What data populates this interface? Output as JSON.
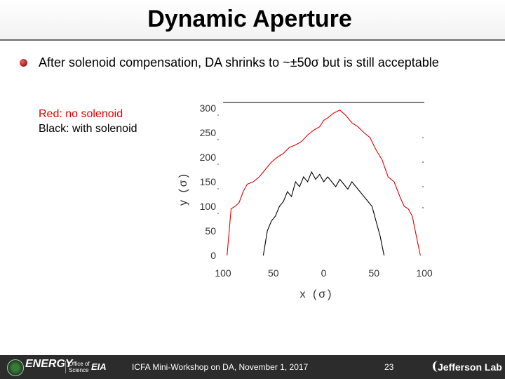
{
  "slide": {
    "title": "Dynamic Aperture",
    "bullet": "After solenoid compensation, DA shrinks to ~±50σ but is still acceptable",
    "legend_red": "Red: no solenoid",
    "legend_black": "Black: with solenoid"
  },
  "footer": {
    "workshop": "ICFA Mini-Workshop on DA, November 1, 2017",
    "page": "23",
    "doe_small": "U.S. DEPARTMENT OF",
    "doe": "ENERGY",
    "office_line1": "Office of",
    "office_line2": "Science",
    "fnal": "EIA",
    "jlab": "Jefferson Lab"
  },
  "colors": {
    "no_solenoid": "#e00000",
    "with_solenoid": "#000000",
    "footer_bg": "#2c2c2c"
  },
  "chart_data": {
    "type": "line",
    "xlabel": "x (σ)",
    "ylabel": "y (σ)",
    "x_ticks": [
      "100",
      "50",
      "0",
      "50",
      "100"
    ],
    "y_ticks": [
      "300",
      "250",
      "200",
      "150",
      "100",
      "50",
      "0"
    ],
    "xlim": [
      -100,
      100
    ],
    "ylim": [
      0,
      300
    ],
    "series": [
      {
        "name": "no solenoid",
        "color": "#e00000",
        "x": [
          -96,
          -92,
          -88,
          -84,
          -80,
          -76,
          -70,
          -64,
          -58,
          -52,
          -46,
          -40,
          -34,
          -28,
          -22,
          -16,
          -10,
          -4,
          0,
          4,
          10,
          16,
          22,
          28,
          34,
          40,
          46,
          52,
          58,
          64,
          70,
          76,
          80,
          84,
          88,
          92,
          96
        ],
        "y": [
          0,
          95,
          100,
          108,
          130,
          145,
          150,
          160,
          175,
          190,
          200,
          208,
          220,
          225,
          232,
          245,
          255,
          262,
          275,
          280,
          290,
          296,
          285,
          270,
          262,
          250,
          240,
          215,
          195,
          160,
          150,
          118,
          100,
          95,
          80,
          40,
          0
        ]
      },
      {
        "name": "with solenoid",
        "color": "#000000",
        "x": [
          -60,
          -56,
          -52,
          -48,
          -44,
          -40,
          -36,
          -32,
          -28,
          -24,
          -20,
          -16,
          -12,
          -8,
          -4,
          0,
          4,
          8,
          12,
          16,
          20,
          24,
          28,
          32,
          36,
          40,
          44,
          48,
          52,
          56,
          60
        ],
        "y": [
          0,
          50,
          70,
          80,
          100,
          110,
          130,
          120,
          150,
          140,
          160,
          150,
          170,
          155,
          165,
          150,
          160,
          150,
          140,
          155,
          145,
          135,
          150,
          140,
          130,
          120,
          110,
          100,
          70,
          40,
          0
        ]
      }
    ],
    "grid": false
  }
}
